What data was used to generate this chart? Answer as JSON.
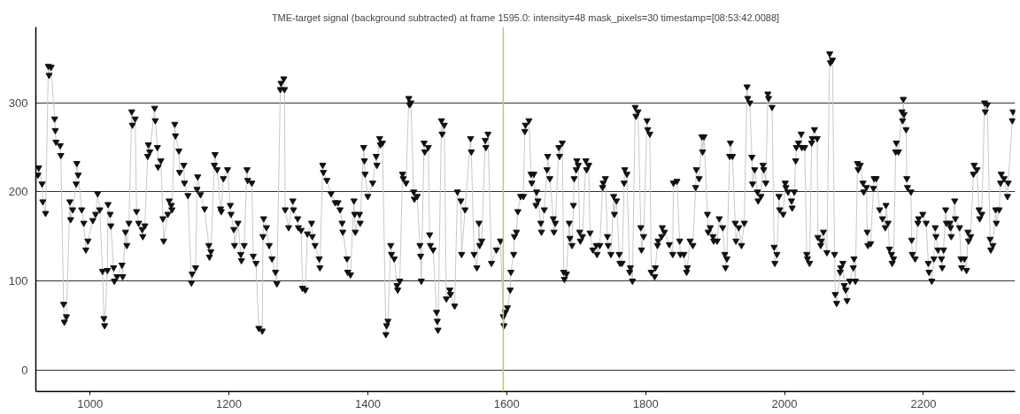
{
  "chart_data": {
    "type": "line",
    "title": "TME-target signal (background subtracted) at frame 1595.0: intensity=48 mask_pixels=30 timestamp=[08:53:42.0088]",
    "marker": "triangle",
    "grid": "y",
    "xlim": [
      922,
      2332
    ],
    "ylim": [
      -24,
      385
    ],
    "xticks": [
      1000,
      1200,
      1400,
      1600,
      1800,
      2000,
      2200
    ],
    "yticks": [
      0,
      100,
      200,
      300
    ],
    "ref_lines": [
      {
        "axis": "x",
        "value": 1595,
        "color": "#c2c47a"
      }
    ],
    "series": [
      {
        "color": "#111111",
        "x": [
          925,
          926,
          931,
          932,
          936,
          940,
          941,
          944,
          949,
          950,
          951,
          957,
          958,
          962,
          963,
          966,
          971,
          972,
          975,
          980,
          981,
          983,
          988,
          991,
          994,
          997,
          1004,
          1008,
          1011,
          1014,
          1018,
          1020,
          1021,
          1025,
          1026,
          1029,
          1030,
          1034,
          1035,
          1039,
          1046,
          1047,
          1051,
          1053,
          1056,
          1060,
          1061,
          1065,
          1067,
          1070,
          1075,
          1076,
          1079,
          1083,
          1084,
          1086,
          1093,
          1094,
          1097,
          1098,
          1102,
          1105,
          1106,
          1112,
          1114,
          1117,
          1118,
          1122,
          1123,
          1128,
          1129,
          1135,
          1136,
          1141,
          1146,
          1147,
          1152,
          1154,
          1155,
          1159,
          1165,
          1171,
          1172,
          1174,
          1179,
          1180,
          1183,
          1188,
          1189,
          1192,
          1198,
          1202,
          1203,
          1207,
          1208,
          1213,
          1217,
          1218,
          1222,
          1226,
          1227,
          1233,
          1235,
          1239,
          1243,
          1248,
          1249,
          1250,
          1254,
          1258,
          1262,
          1267,
          1269,
          1274,
          1275,
          1279,
          1280,
          1281,
          1286,
          1292,
          1293,
          1299,
          1300,
          1304,
          1306,
          1310,
          1313,
          1319,
          1320,
          1324,
          1330,
          1331,
          1335,
          1336,
          1341,
          1347,
          1353,
          1357,
          1360,
          1363,
          1364,
          1370,
          1371,
          1375,
          1380,
          1381,
          1382,
          1388,
          1389,
          1394,
          1395,
          1396,
          1400,
          1407,
          1412,
          1413,
          1417,
          1418,
          1421,
          1426,
          1427,
          1429,
          1433,
          1434,
          1438,
          1442,
          1443,
          1446,
          1450,
          1451,
          1455,
          1459,
          1460,
          1462,
          1466,
          1467,
          1471,
          1475,
          1476,
          1477,
          1481,
          1482,
          1487,
          1489,
          1490,
          1494,
          1499,
          1500,
          1501,
          1506,
          1507,
          1510,
          1513,
          1518,
          1519,
          1525,
          1529,
          1534,
          1535,
          1540,
          1548,
          1549,
          1553,
          1557,
          1560,
          1561,
          1564,
          1569,
          1570,
          1573,
          1578,
          1585,
          1591,
          1595,
          1596,
          1598,
          1601,
          1605,
          1606,
          1610,
          1611,
          1614,
          1616,
          1620,
          1624,
          1626,
          1627,
          1632,
          1635,
          1636,
          1639,
          1642,
          1643,
          1645,
          1649,
          1650,
          1654,
          1658,
          1659,
          1662,
          1667,
          1668,
          1670,
          1675,
          1676,
          1680,
          1682,
          1683,
          1686,
          1690,
          1691,
          1694,
          1696,
          1697,
          1700,
          1701,
          1703,
          1705,
          1706,
          1709,
          1714,
          1715,
          1718,
          1720,
          1724,
          1729,
          1730,
          1734,
          1738,
          1739,
          1742,
          1745,
          1746,
          1750,
          1754,
          1755,
          1758,
          1762,
          1763,
          1766,
          1769,
          1770,
          1773,
          1777,
          1778,
          1781,
          1785,
          1786,
          1789,
          1793,
          1794,
          1797,
          1802,
          1803,
          1806,
          1808,
          1813,
          1814,
          1817,
          1818,
          1823,
          1824,
          1827,
          1834,
          1839,
          1840,
          1845,
          1849,
          1850,
          1855,
          1859,
          1860,
          1864,
          1868,
          1872,
          1873,
          1877,
          1881,
          1882,
          1884,
          1889,
          1890,
          1893,
          1897,
          1898,
          1903,
          1906,
          1911,
          1914,
          1915,
          1917,
          1921,
          1922,
          1925,
          1929,
          1930,
          1934,
          1938,
          1942,
          1946,
          1947,
          1950,
          1953,
          1954,
          1957,
          1961,
          1962,
          1966,
          1969,
          1970,
          1973,
          1976,
          1977,
          1982,
          1985,
          1986,
          1989,
          1992,
          1993,
          1998,
          2001,
          2002,
          2005,
          2010,
          2011,
          2014,
          2016,
          2017,
          2020,
          2024,
          2025,
          2029,
          2032,
          2033,
          2036,
          2039,
          2040,
          2043,
          2047,
          2048,
          2052,
          2053,
          2056,
          2061,
          2065,
          2066,
          2069,
          2072,
          2073,
          2075,
          2080,
          2081,
          2084,
          2086,
          2088,
          2090,
          2094,
          2099,
          2100,
          2102,
          2105,
          2106,
          2109,
          2113,
          2114,
          2118,
          2119,
          2120,
          2124,
          2128,
          2129,
          2132,
          2137,
          2141,
          2145,
          2146,
          2149,
          2151,
          2154,
          2155,
          2157,
          2160,
          2161,
          2164,
          2169,
          2170,
          2171,
          2172,
          2175,
          2176,
          2177,
          2182,
          2183,
          2184,
          2188,
          2192,
          2193,
          2199,
          2204,
          2207,
          2208,
          2212,
          2215,
          2217,
          2218,
          2221,
          2226,
          2227,
          2229,
          2232,
          2233,
          2238,
          2239,
          2240,
          2245,
          2246,
          2252,
          2254,
          2255,
          2259,
          2262,
          2264,
          2265,
          2268,
          2272,
          2273,
          2277,
          2280,
          2281,
          2284,
          2288,
          2289,
          2292,
          2296,
          2297,
          2300,
          2304,
          2305,
          2309,
          2311,
          2312,
          2316,
          2321,
          2322,
          2328,
          2329
        ],
        "values": [
          219,
          227,
          209,
          189,
          176,
          341,
          331,
          340,
          282,
          269,
          256,
          252,
          241,
          74,
          54,
          60,
          189,
          169,
          180,
          209,
          232,
          219,
          180,
          165,
          135,
          145,
          168,
          175,
          198,
          180,
          111,
          58,
          50,
          112,
          186,
          175,
          162,
          115,
          100,
          105,
          118,
          105,
          155,
          140,
          165,
          290,
          275,
          282,
          178,
          165,
          158,
          150,
          162,
          240,
          253,
          245,
          294,
          280,
          250,
          228,
          235,
          170,
          145,
          175,
          190,
          185,
          180,
          276,
          263,
          246,
          222,
          230,
          210,
          196,
          98,
          108,
          115,
          203,
          217,
          197,
          181,
          140,
          127,
          133,
          230,
          242,
          225,
          181,
          178,
          215,
          225,
          185,
          175,
          158,
          140,
          165,
          130,
          123,
          140,
          225,
          213,
          210,
          128,
          120,
          47,
          44,
          150,
          170,
          160,
          140,
          125,
          110,
          97,
          315,
          322,
          327,
          315,
          180,
          160,
          190,
          180,
          170,
          160,
          157,
          92,
          90,
          153,
          165,
          150,
          140,
          125,
          115,
          230,
          222,
          213,
          198,
          188,
          188,
          180,
          165,
          155,
          125,
          110,
          107,
          190,
          175,
          155,
          175,
          165,
          250,
          235,
          220,
          195,
          210,
          240,
          230,
          260,
          253,
          255,
          40,
          50,
          55,
          140,
          130,
          125,
          95,
          90,
          100,
          220,
          215,
          210,
          305,
          298,
          300,
          200,
          192,
          195,
          140,
          128,
          100,
          255,
          245,
          250,
          152,
          140,
          135,
          65,
          55,
          45,
          280,
          265,
          275,
          80,
          90,
          85,
          72,
          200,
          190,
          130,
          180,
          260,
          245,
          130,
          115,
          165,
          140,
          145,
          258,
          250,
          265,
          120,
          135,
          145,
          60,
          50,
          65,
          70,
          90,
          110,
          130,
          150,
          155,
          178,
          195,
          195,
          268,
          275,
          280,
          220,
          210,
          220,
          185,
          200,
          190,
          165,
          155,
          180,
          225,
          240,
          215,
          170,
          155,
          165,
          250,
          240,
          255,
          110,
          102,
          108,
          165,
          148,
          140,
          185,
          215,
          225,
          235,
          230,
          155,
          145,
          150,
          235,
          225,
          230,
          154,
          135,
          140,
          130,
          140,
          205,
          210,
          215,
          150,
          140,
          130,
          195,
          175,
          190,
          130,
          120,
          120,
          210,
          225,
          220,
          110,
          115,
          100,
          295,
          285,
          290,
          160,
          135,
          150,
          280,
          270,
          265,
          110,
          105,
          115,
          140,
          145,
          150,
          160,
          155,
          141,
          130,
          210,
          212,
          145,
          130,
          130,
          110,
          115,
          145,
          140,
          205,
          225,
          215,
          262,
          245,
          262,
          175,
          155,
          160,
          150,
          145,
          145,
          170,
          160,
          130,
          115,
          125,
          240,
          255,
          240,
          165,
          145,
          160,
          140,
          165,
          318,
          305,
          300,
          239,
          209,
          225,
          200,
          190,
          195,
          230,
          225,
          210,
          310,
          305,
          295,
          138,
          120,
          130,
          195,
          180,
          175,
          210,
          205,
          200,
          190,
          182,
          200,
          235,
          250,
          255,
          265,
          250,
          250,
          130,
          125,
          120,
          255,
          260,
          270,
          260,
          149,
          140,
          145,
          155,
          132,
          355,
          345,
          348,
          130,
          85,
          75,
          110,
          115,
          120,
          95,
          90,
          78,
          100,
          115,
          125,
          100,
          232,
          225,
          230,
          210,
          200,
          205,
          155,
          140,
          142,
          204,
          215,
          215,
          180,
          170,
          160,
          185,
          165,
          136,
          130,
          120,
          125,
          245,
          255,
          245,
          290,
          280,
          304,
          287,
          270,
          215,
          205,
          200,
          146,
          130,
          125,
          165,
          170,
          175,
          165,
          120,
          110,
          100,
          125,
          160,
          150,
          135,
          125,
          115,
          135,
          180,
          165,
          165,
          160,
          150,
          190,
          170,
          160,
          125,
          115,
          125,
          112,
          155,
          145,
          150,
          220,
          230,
          225,
          180,
          170,
          175,
          300,
          290,
          298,
          147,
          135,
          140,
          180,
          165,
          180,
          210,
          220,
          215,
          195,
          210,
          280,
          290
        ]
      }
    ]
  }
}
